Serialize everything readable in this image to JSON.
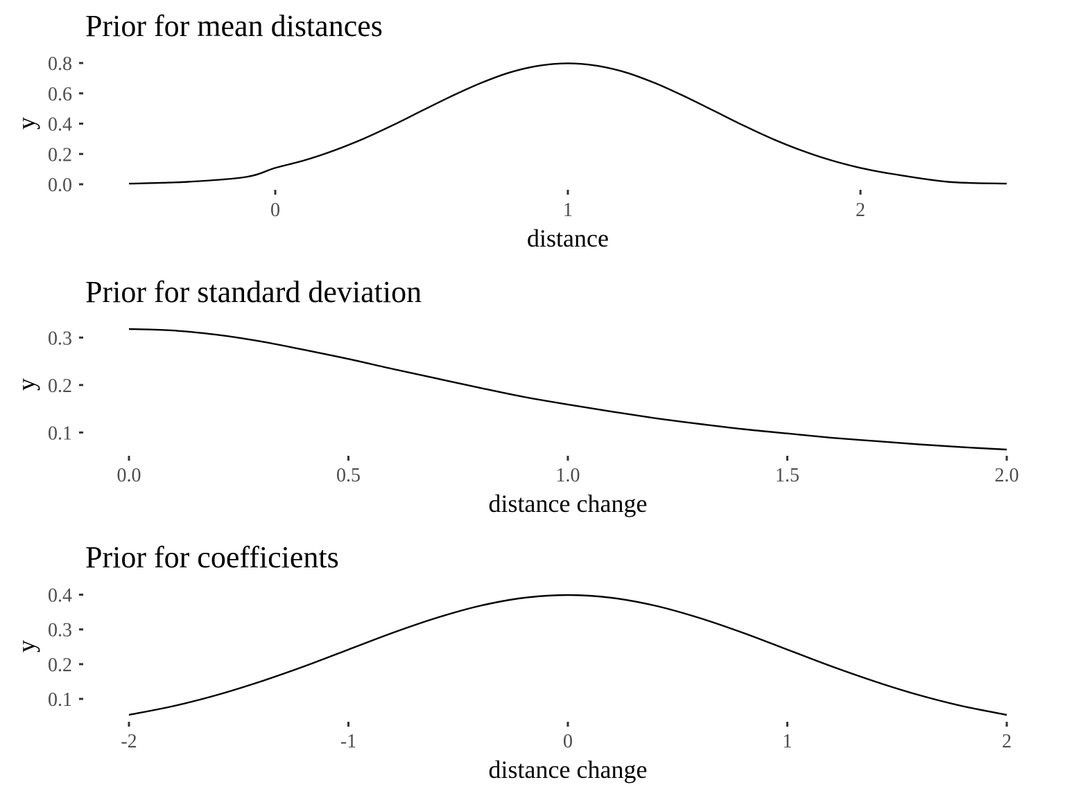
{
  "chart_data": [
    {
      "type": "line",
      "title": "Prior for mean distances",
      "xlabel": "distance",
      "ylabel": "y",
      "xlim": [
        -0.5,
        2.5
      ],
      "ylim": [
        0.0,
        0.8
      ],
      "x_ticks": [
        0,
        1,
        2
      ],
      "x_tick_labels": [
        "0",
        "1",
        "2"
      ],
      "y_ticks": [
        0.0,
        0.2,
        0.4,
        0.6,
        0.8
      ],
      "y_tick_labels": [
        "0.0",
        "0.2",
        "0.4",
        "0.6",
        "0.8"
      ],
      "grid": false,
      "x": [
        -0.5,
        -0.3,
        -0.1,
        0.0,
        0.1,
        0.2,
        0.3,
        0.4,
        0.5,
        0.6,
        0.7,
        0.8,
        0.9,
        1.0,
        1.1,
        1.2,
        1.3,
        1.4,
        1.5,
        1.6,
        1.7,
        1.8,
        1.9,
        2.0,
        2.1,
        2.3,
        2.5
      ],
      "y": [
        0.004,
        0.016,
        0.048,
        0.108,
        0.158,
        0.222,
        0.299,
        0.388,
        0.484,
        0.579,
        0.666,
        0.737,
        0.782,
        0.798,
        0.782,
        0.737,
        0.666,
        0.579,
        0.484,
        0.388,
        0.299,
        0.222,
        0.158,
        0.108,
        0.071,
        0.016,
        0.004
      ]
    },
    {
      "type": "line",
      "title": "Prior for standard deviation",
      "xlabel": "distance change",
      "ylabel": "y",
      "xlim": [
        0.0,
        2.0
      ],
      "ylim": [
        0.064,
        0.318
      ],
      "x_ticks": [
        0.0,
        0.5,
        1.0,
        1.5,
        2.0
      ],
      "x_tick_labels": [
        "0.0",
        "0.5",
        "1.0",
        "1.5",
        "2.0"
      ],
      "y_ticks": [
        0.1,
        0.2,
        0.3
      ],
      "y_tick_labels": [
        "0.1",
        "0.2",
        "0.3"
      ],
      "grid": false,
      "x": [
        0.0,
        0.1,
        0.2,
        0.3,
        0.4,
        0.5,
        0.6,
        0.7,
        0.8,
        0.9,
        1.0,
        1.1,
        1.2,
        1.3,
        1.4,
        1.5,
        1.6,
        1.7,
        1.8,
        1.9,
        2.0
      ],
      "y": [
        0.318,
        0.315,
        0.306,
        0.292,
        0.274,
        0.255,
        0.234,
        0.214,
        0.194,
        0.175,
        0.159,
        0.144,
        0.13,
        0.118,
        0.107,
        0.098,
        0.089,
        0.082,
        0.075,
        0.069,
        0.064
      ]
    },
    {
      "type": "line",
      "title": "Prior for coefficients",
      "xlabel": "distance change",
      "ylabel": "y",
      "xlim": [
        -2,
        2
      ],
      "ylim": [
        0.054,
        0.399
      ],
      "x_ticks": [
        -2,
        -1,
        0,
        1,
        2
      ],
      "x_tick_labels": [
        "-2",
        "-1",
        "0",
        "1",
        "2"
      ],
      "y_ticks": [
        0.1,
        0.2,
        0.3,
        0.4
      ],
      "y_tick_labels": [
        "0.1",
        "0.2",
        "0.3",
        "0.4"
      ],
      "grid": false,
      "x": [
        -2.0,
        -1.8,
        -1.6,
        -1.4,
        -1.2,
        -1.0,
        -0.8,
        -0.6,
        -0.4,
        -0.2,
        0.0,
        0.2,
        0.4,
        0.6,
        0.8,
        1.0,
        1.2,
        1.4,
        1.6,
        1.8,
        2.0
      ],
      "y": [
        0.054,
        0.079,
        0.111,
        0.15,
        0.194,
        0.242,
        0.29,
        0.333,
        0.368,
        0.391,
        0.399,
        0.391,
        0.368,
        0.333,
        0.29,
        0.242,
        0.194,
        0.15,
        0.111,
        0.079,
        0.054
      ]
    }
  ]
}
